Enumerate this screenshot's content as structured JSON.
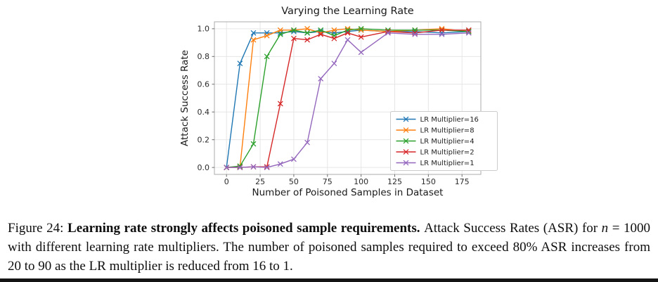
{
  "chart_data": {
    "type": "line",
    "title": "Varying the Learning Rate",
    "xlabel": "Number of Poisoned Samples in Dataset",
    "ylabel": "Attack Success Rate",
    "xlim": [
      -9,
      189
    ],
    "ylim": [
      -0.05,
      1.05
    ],
    "xticks": [
      0,
      25,
      50,
      75,
      100,
      125,
      150,
      175
    ],
    "ytick_labels": [
      "0.0",
      "0.2",
      "0.4",
      "0.6",
      "0.8",
      "1.0"
    ],
    "yticks": [
      0.0,
      0.2,
      0.4,
      0.6,
      0.8,
      1.0
    ],
    "grid": true,
    "legend_position": "lower right",
    "marker": "x",
    "x": [
      0,
      10,
      20,
      30,
      40,
      50,
      60,
      70,
      80,
      90,
      100,
      120,
      140,
      160,
      180
    ],
    "series": [
      {
        "name": "LR Multiplier=16",
        "color": "#1f77b4",
        "values": [
          0.0,
          0.75,
          0.97,
          0.97,
          0.97,
          0.98,
          0.97,
          0.98,
          0.97,
          0.98,
          0.99,
          0.98,
          0.98,
          0.97,
          0.98
        ]
      },
      {
        "name": "LR Multiplier=8",
        "color": "#ff7f0e",
        "values": [
          0.0,
          0.005,
          0.92,
          0.95,
          0.99,
          0.99,
          1.0,
          0.97,
          0.99,
          1.0,
          0.99,
          0.98,
          0.99,
          1.0,
          0.98
        ]
      },
      {
        "name": "LR Multiplier=4",
        "color": "#2ca02c",
        "values": [
          0.0,
          0.01,
          0.17,
          0.8,
          0.96,
          0.99,
          0.97,
          0.99,
          0.95,
          0.99,
          1.0,
          0.99,
          0.99,
          0.99,
          0.98
        ]
      },
      {
        "name": "LR Multiplier=2",
        "color": "#d62728",
        "values": [
          0.0,
          0.0,
          0.005,
          0.005,
          0.46,
          0.93,
          0.92,
          0.96,
          0.93,
          0.97,
          0.94,
          0.98,
          0.97,
          0.99,
          0.99
        ]
      },
      {
        "name": "LR Multiplier=1",
        "color": "#9467bd",
        "values": [
          0.0,
          0.0,
          0.005,
          0.0,
          0.025,
          0.06,
          0.18,
          0.64,
          0.75,
          0.92,
          0.83,
          0.97,
          0.96,
          0.96,
          0.97
        ]
      }
    ]
  },
  "caption": {
    "label": "Figure 24: ",
    "bold": "Learning rate strongly affects poisoned sample requirements. ",
    "text_before_math": "Attack Success Rates (ASR) for ",
    "math_var": "n",
    "text_after_math": " = 1000 with different learning rate multipliers.  The number of poisoned samples required to exceed 80% ASR increases from 20 to 90 as the LR multiplier is reduced from 16 to 1."
  }
}
